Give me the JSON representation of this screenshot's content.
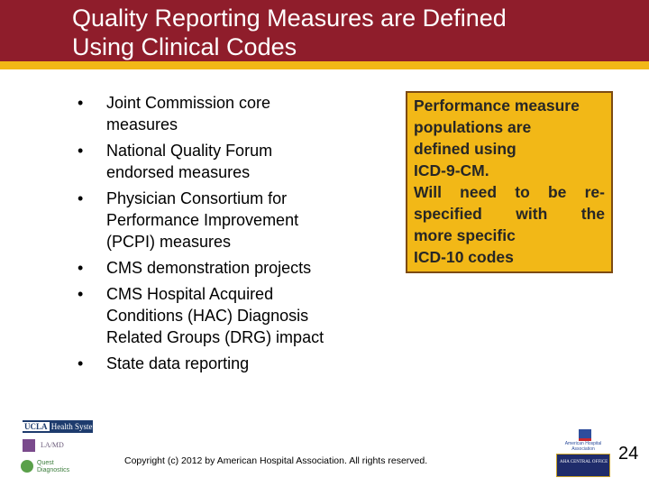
{
  "header": {
    "title_line1": "Quality Reporting Measures are Defined",
    "title_line2": "Using Clinical Codes",
    "colors": {
      "band": "#8f1d2b",
      "stripe": "#f2b817",
      "title_text": "#ffffff"
    }
  },
  "bullets": {
    "marker": "•",
    "items": [
      {
        "line1": "Joint Commission core",
        "line2": "measures"
      },
      {
        "line1": "National Quality Forum",
        "line2": "endorsed measures"
      },
      {
        "line1": "Physician Consortium for",
        "line2": "Performance Improvement",
        "line3": "(PCPI) measures"
      },
      {
        "line1": "CMS demonstration projects"
      },
      {
        "line1": "CMS Hospital Acquired",
        "line2": "Conditions (HAC) Diagnosis",
        "line3": "Related Groups (DRG) impact"
      },
      {
        "line1": "State data reporting"
      }
    ]
  },
  "callout": {
    "line1": "Performance measure",
    "line2": "populations are",
    "line3": "defined using",
    "line4": "ICD-9-CM.",
    "line5": "Will need to be re-",
    "line6": "specified with the",
    "line7": "more specific",
    "line8": "ICD-10 codes",
    "colors": {
      "background": "#f2b817",
      "border": "#7c4a12"
    }
  },
  "footer": {
    "copyright": "Copyright (c) 2012 by American Hospital Association. All rights reserved.",
    "slide_number": "24"
  },
  "logos": {
    "ucla_mark": "UCLA",
    "ucla_text": "Health System",
    "lamd_mark": "LAMD",
    "lamd_text": "LA/MD",
    "quest_line1": "Quest",
    "quest_line2": "Diagnostics",
    "aha_name": "American Hospital Association",
    "ahc_text": "AHA CENTRAL OFFICE"
  }
}
